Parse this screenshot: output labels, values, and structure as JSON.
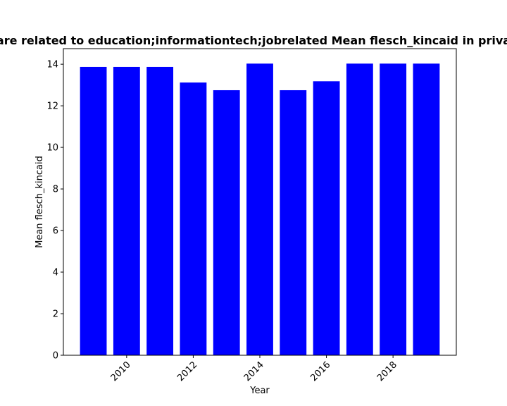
{
  "chart_data": {
    "type": "bar",
    "title": "are related to education;informationtech;jobrelated Mean flesch_kincaid in priva",
    "xlabel": "Year",
    "ylabel": "Mean flesch_kincaid",
    "x": [
      2009,
      2010,
      2011,
      2012,
      2013,
      2014,
      2015,
      2016,
      2017,
      2018,
      2019
    ],
    "values": [
      13.87,
      13.87,
      13.87,
      13.12,
      12.75,
      14.03,
      12.75,
      13.18,
      14.03,
      14.03,
      14.03
    ],
    "xlim": [
      2008.1,
      2019.9
    ],
    "ylim": [
      0,
      14.75
    ],
    "xticks": [
      2010,
      2012,
      2014,
      2016,
      2018
    ],
    "yticks": [
      0,
      2,
      4,
      6,
      8,
      10,
      12,
      14
    ],
    "bar_color": "#0000ff",
    "grid": false,
    "legend": false
  }
}
